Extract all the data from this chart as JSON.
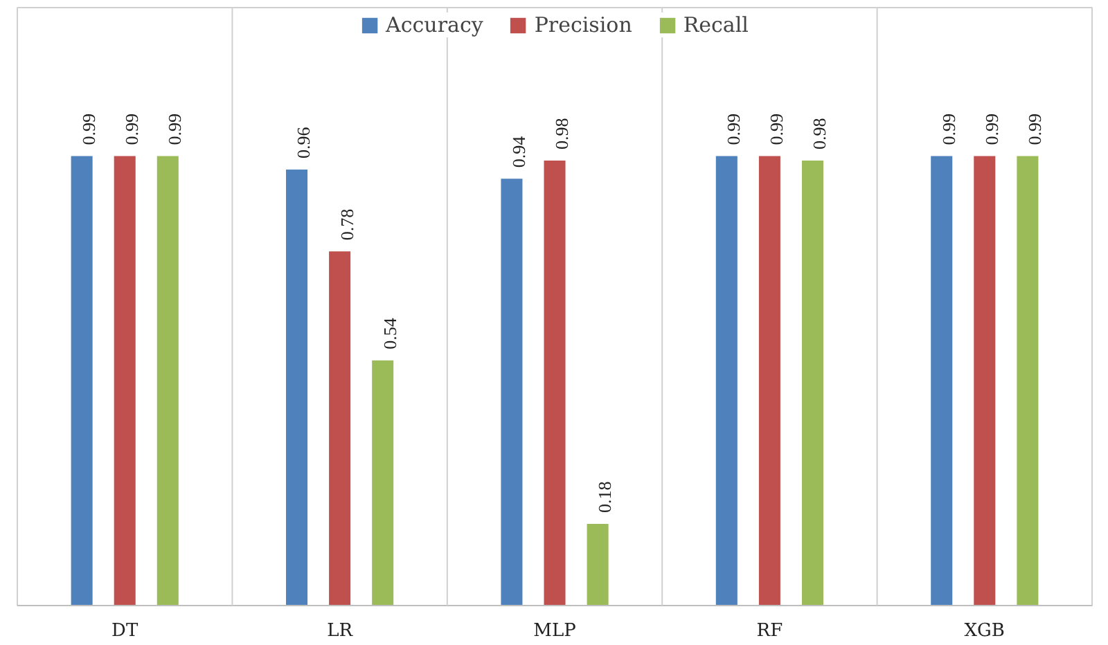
{
  "chart_data": {
    "type": "bar",
    "categories": [
      "DT",
      "LR",
      "MLP",
      "RF",
      "XGB"
    ],
    "series": [
      {
        "name": "Accuracy",
        "color": "#4f81bd",
        "values": [
          0.99,
          0.96,
          0.94,
          0.99,
          0.99
        ]
      },
      {
        "name": "Precision",
        "color": "#c0504d",
        "values": [
          0.99,
          0.78,
          0.98,
          0.99,
          0.99
        ]
      },
      {
        "name": "Recall",
        "color": "#9bbb59",
        "values": [
          0.99,
          0.54,
          0.18,
          0.98,
          0.99
        ]
      }
    ],
    "data_labels": true,
    "grid": "x",
    "legend": "top"
  }
}
